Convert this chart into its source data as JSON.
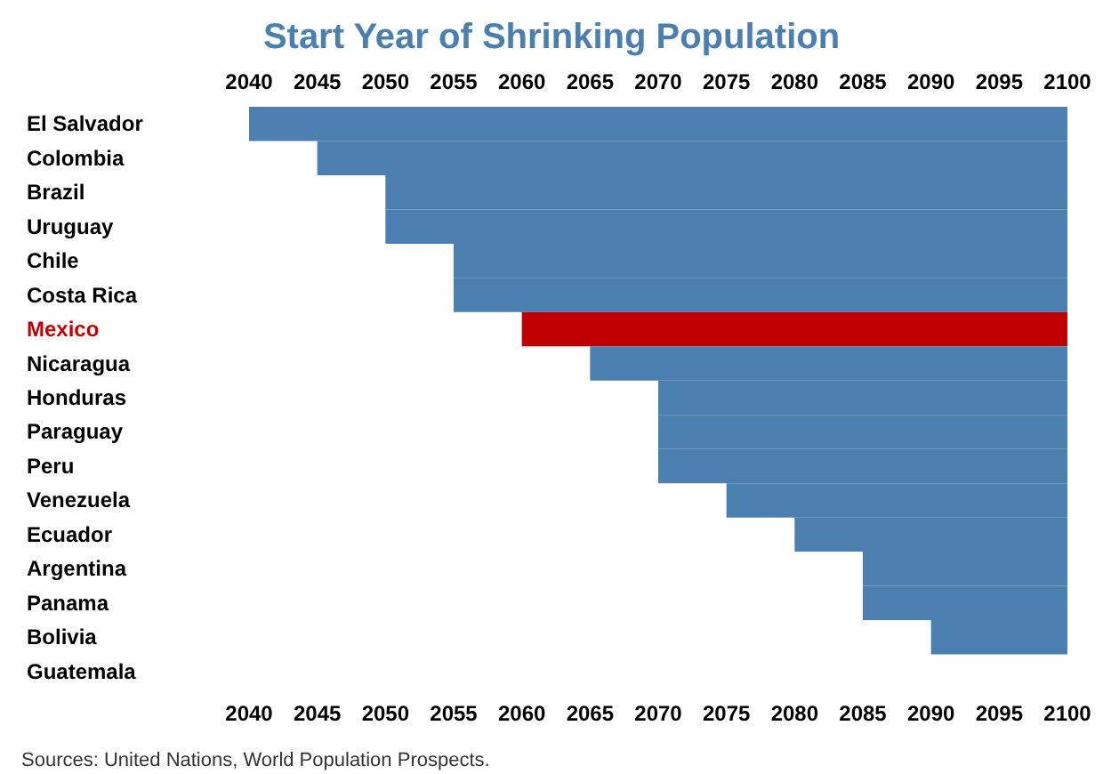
{
  "chart_data": {
    "type": "bar",
    "orientation": "horizontal",
    "title": "Start Year of Shrinking Population",
    "categories": [
      "El Salvador",
      "Colombia",
      "Brazil",
      "Uruguay",
      "Chile",
      "Costa Rica",
      "Mexico",
      "Nicaragua",
      "Honduras",
      "Paraguay",
      "Peru",
      "Venezuela",
      "Ecuador",
      "Argentina",
      "Panama",
      "Bolivia",
      "Guatemala"
    ],
    "base": [
      2040,
      2045,
      2050,
      2050,
      2055,
      2055,
      2060,
      2065,
      2070,
      2070,
      2070,
      2075,
      2080,
      2085,
      2085,
      2090,
      null
    ],
    "values": [
      60,
      55,
      50,
      50,
      45,
      45,
      40,
      35,
      30,
      30,
      30,
      25,
      20,
      15,
      15,
      10,
      null
    ],
    "color": "#4a7fb0",
    "colors": [
      "#4a7fb0",
      "#4a7fb0",
      "#4a7fb0",
      "#4a7fb0",
      "#4a7fb0",
      "#4a7fb0",
      "#c00000",
      "#4a7fb0",
      "#4a7fb0",
      "#4a7fb0",
      "#4a7fb0",
      "#4a7fb0",
      "#4a7fb0",
      "#4a7fb0",
      "#4a7fb0",
      "#4a7fb0",
      "#4a7fb0"
    ],
    "xlim": [
      2040,
      2100
    ],
    "xticks": [
      2040,
      2045,
      2050,
      2055,
      2060,
      2065,
      2070,
      2075,
      2080,
      2085,
      2090,
      2095,
      2100
    ],
    "x2lim": [
      2040,
      2100
    ],
    "x2ticks": [
      2040,
      2045,
      2050,
      2055,
      2060,
      2065,
      2070,
      2075,
      2080,
      2085,
      2090,
      2095,
      2100
    ],
    "grid": false,
    "annotations": [
      "Sources: United Nations, World Population Prospects."
    ]
  }
}
